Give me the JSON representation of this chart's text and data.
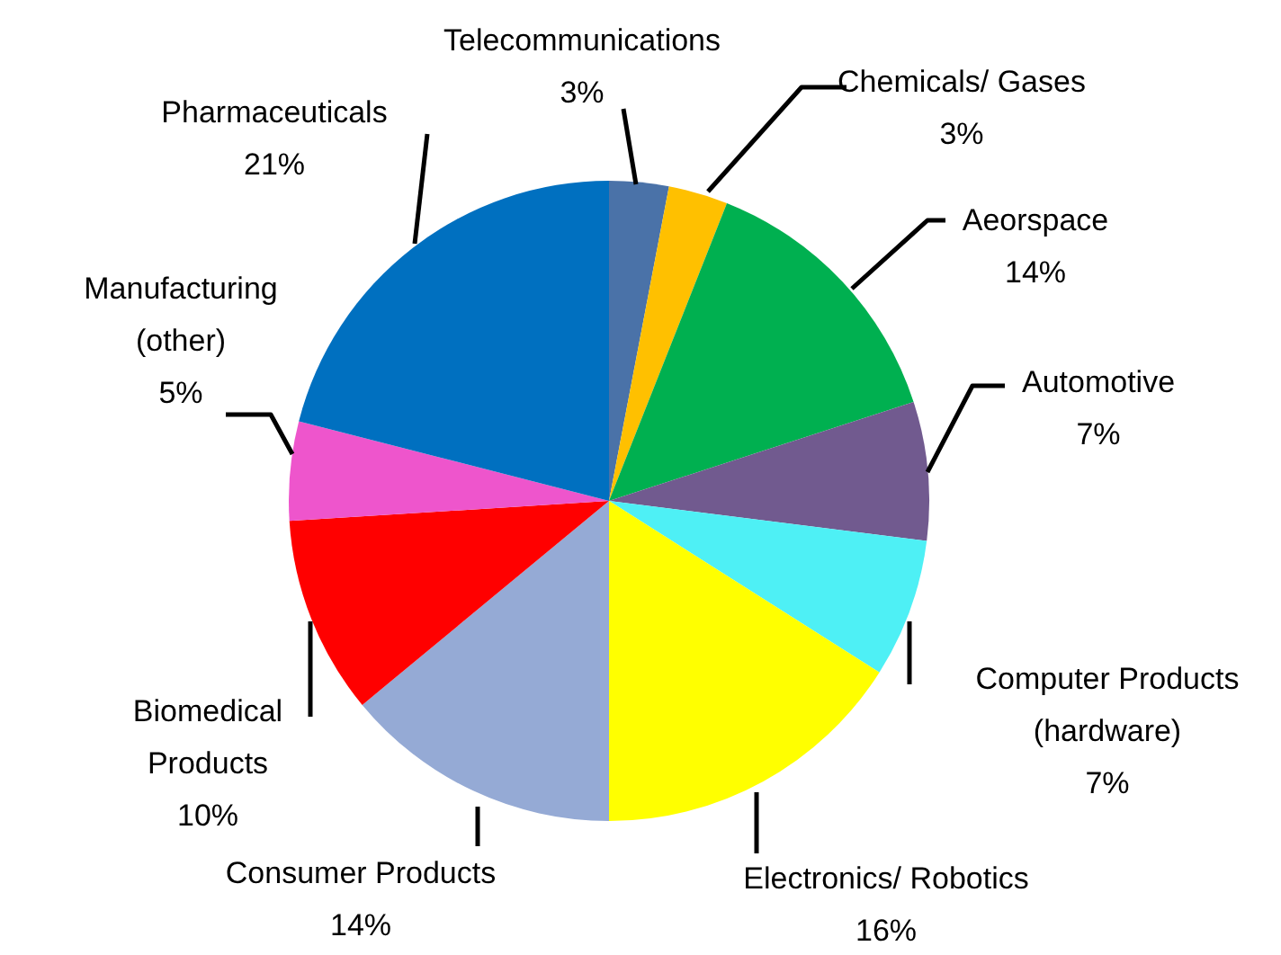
{
  "chart_data": {
    "type": "pie",
    "categories": [
      "Telecommunications",
      "Chemicals/ Gases",
      "Aeorspace",
      "Automotive",
      "Computer Products\n(hardware)",
      "Electronics/ Robotics",
      "Consumer Products",
      "Biomedical\nProducts",
      "Manufacturing\n(other)",
      "Pharmaceuticals"
    ],
    "values": [
      3,
      3,
      14,
      7,
      7,
      16,
      14,
      10,
      5,
      21
    ],
    "value_labels": [
      "3%",
      "3%",
      "14%",
      "7%",
      "7%",
      "16%",
      "14%",
      "10%",
      "5%",
      "21%"
    ],
    "colors": [
      "#4a72a8",
      "#ffc000",
      "#00b050",
      "#715a8f",
      "#4ef0f5",
      "#ffff00",
      "#95aad5",
      "#ff0000",
      "#ee55cc",
      "#0070c0"
    ]
  }
}
